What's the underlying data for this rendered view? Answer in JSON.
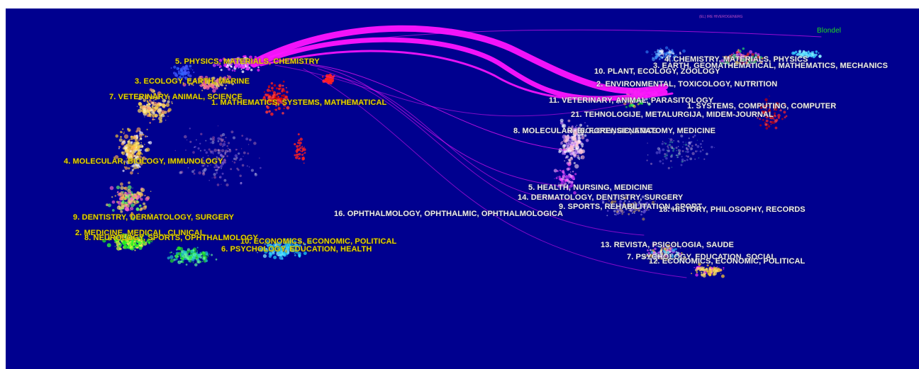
{
  "algorithm_label": "Blondel",
  "colors": {
    "background": "#00008f",
    "link": "#ff14ff",
    "left_label": "#e6d200",
    "right_label": "#ececec",
    "legend": "#1fdc1f"
  },
  "header_small_text": "(EL) IRE HIVEROGENERG",
  "left_map": {
    "clusters": [
      {
        "id": "l5",
        "label": "5. PHYSICS, MATERIALS, CHEMISTRY"
      },
      {
        "id": "l3",
        "label": "3. ECOLOGY, EARTH, MARINE"
      },
      {
        "id": "l7",
        "label": "7. VETERINARY, ANIMAL, SCIENCE"
      },
      {
        "id": "l1",
        "label": "1. MATHEMATICS, SYSTEMS, MATHEMATICAL"
      },
      {
        "id": "l4",
        "label": "4. MOLECULAR, BIOLOGY, IMMUNOLOGY"
      },
      {
        "id": "l9",
        "label": "9. DENTISTRY, DERMATOLOGY, SURGERY"
      },
      {
        "id": "l2",
        "label": "2. MEDICINE, MEDICAL, CLINICAL"
      },
      {
        "id": "l8",
        "label": "8. NEUROLOGY, SPORTS, OPHTHALMOLOGY"
      },
      {
        "id": "l10",
        "label": "10. ECONOMICS, ECONOMIC, POLITICAL"
      },
      {
        "id": "l6",
        "label": "6. PSYCHOLOGY, EDUCATION, HEALTH"
      },
      {
        "id": "l16",
        "label": "16. OPHTHALMOLOGY, OPHTHALMIC, OPHTHALMOLOGICA"
      }
    ]
  },
  "right_map": {
    "clusters": [
      {
        "id": "r4",
        "label": "4. CHEMISTRY, MATERIALS, PHYSICS"
      },
      {
        "id": "r3",
        "label": "3. EARTH, GEOMATHEMATICAL, MATHEMATICS, MECHANICS"
      },
      {
        "id": "r10",
        "label": "10. PLANT, ECOLOGY, ZOOLOGY"
      },
      {
        "id": "r2",
        "label": "2. ENVIRONMENTAL, TOXICOLOGY, NUTRITION"
      },
      {
        "id": "r11",
        "label": "11. VETERINARY, ANIMAL, PARASITOLOGY"
      },
      {
        "id": "r1",
        "label": "1. SYSTEMS, COMPUTING, COMPUTER"
      },
      {
        "id": "r21",
        "label": "21. TEHNOLOGIJE, METALURGIJA, MIDEM-JOURNAL"
      },
      {
        "id": "r8",
        "label": "8. MOLECULAR, BIOLOGY, GENETICS"
      },
      {
        "id": "r6",
        "label": "6. FORENSIC, ANATOMY, MEDICINE"
      },
      {
        "id": "r5",
        "label": "5. HEALTH, NURSING, MEDICINE"
      },
      {
        "id": "r14",
        "label": "14. DERMATOLOGY, DENTISTRY, SURGERY"
      },
      {
        "id": "r9",
        "label": "9. SPORTS, REHABILITATION, SPORT"
      },
      {
        "id": "r18",
        "label": "18. HISTORY, PHILOSOPHY, RECORDS"
      },
      {
        "id": "r13",
        "label": "13. REVISTA, PSICOLOGIA, SAUDE"
      },
      {
        "id": "r7",
        "label": "7. PSYCHOLOGY, EDUCATION, SOCIAL"
      },
      {
        "id": "r12",
        "label": "12. ECONOMICS, ECONOMIC, POLITICAL"
      }
    ]
  }
}
